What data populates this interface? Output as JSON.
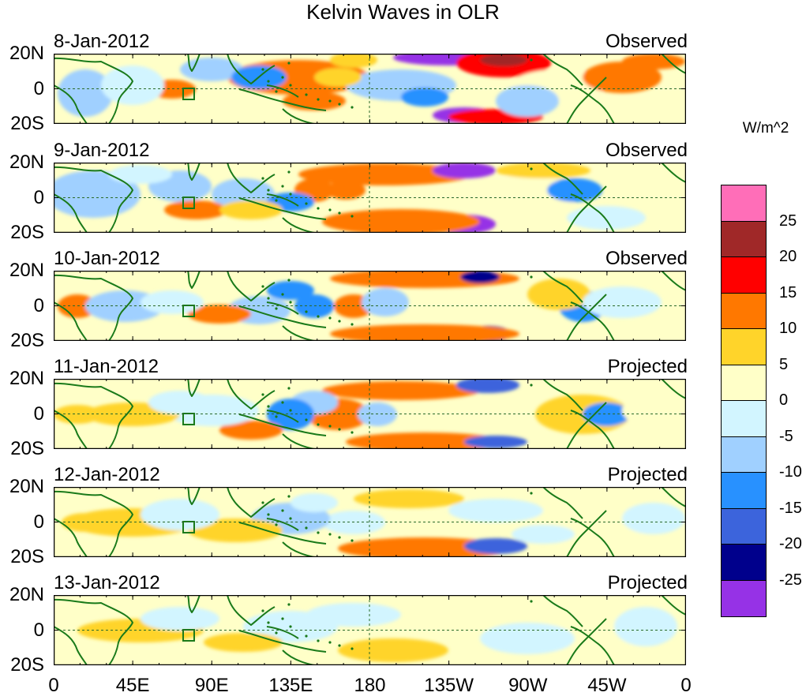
{
  "title": "Kelvin Waves in OLR",
  "units": "W/m^2",
  "latitude_labels": [
    "20N",
    "0",
    "20S"
  ],
  "longitude_labels": [
    "0",
    "45E",
    "90E",
    "135E",
    "180",
    "135W",
    "90W",
    "45W",
    "0"
  ],
  "panels": [
    {
      "date": "8-Jan-2012",
      "status": "Observed"
    },
    {
      "date": "9-Jan-2012",
      "status": "Observed"
    },
    {
      "date": "10-Jan-2012",
      "status": "Observed"
    },
    {
      "date": "11-Jan-2012",
      "status": "Projected"
    },
    {
      "date": "12-Jan-2012",
      "status": "Projected"
    },
    {
      "date": "13-Jan-2012",
      "status": "Projected"
    }
  ],
  "colorbar": {
    "labels": [
      "25",
      "20",
      "15",
      "10",
      "5",
      "0",
      "-5",
      "-10",
      "-15",
      "-20",
      "-25"
    ],
    "colors": [
      "#ff6eb8",
      "#a02828",
      "#ff0000",
      "#ff7800",
      "#ffd42a",
      "#ffffc8",
      "#d2f5ff",
      "#a0d0ff",
      "#2891ff",
      "#3c64dc",
      "#00008c",
      "#9632e6"
    ]
  }
}
